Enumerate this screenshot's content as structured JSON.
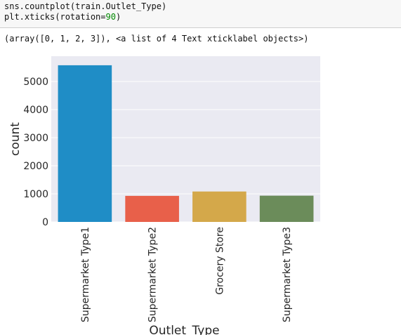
{
  "code_cell": {
    "line1": "sns.countplot(train.Outlet_Type)",
    "line2_prefix": "plt.xticks(rotation=",
    "line2_number": "90",
    "line2_suffix": ")"
  },
  "output_text": "(array([0, 1, 2, 3]), <a list of 4 Text xticklabel objects>)",
  "chart_data": {
    "type": "bar",
    "categories": [
      "Supermarket Type1",
      "Supermarket Type2",
      "Grocery Store",
      "Supermarket Type3"
    ],
    "values": [
      5577,
      928,
      1083,
      935
    ],
    "colors": [
      "#1f8dc6",
      "#e8604a",
      "#d4a84a",
      "#6b8c5a"
    ],
    "xlabel": "Outlet_Type",
    "ylabel": "count",
    "yticks": [
      0,
      1000,
      2000,
      3000,
      4000,
      5000
    ],
    "ylim": [
      0,
      5900
    ],
    "grid": true,
    "background": "#eaeaf2",
    "x_tick_rotation": 90
  }
}
